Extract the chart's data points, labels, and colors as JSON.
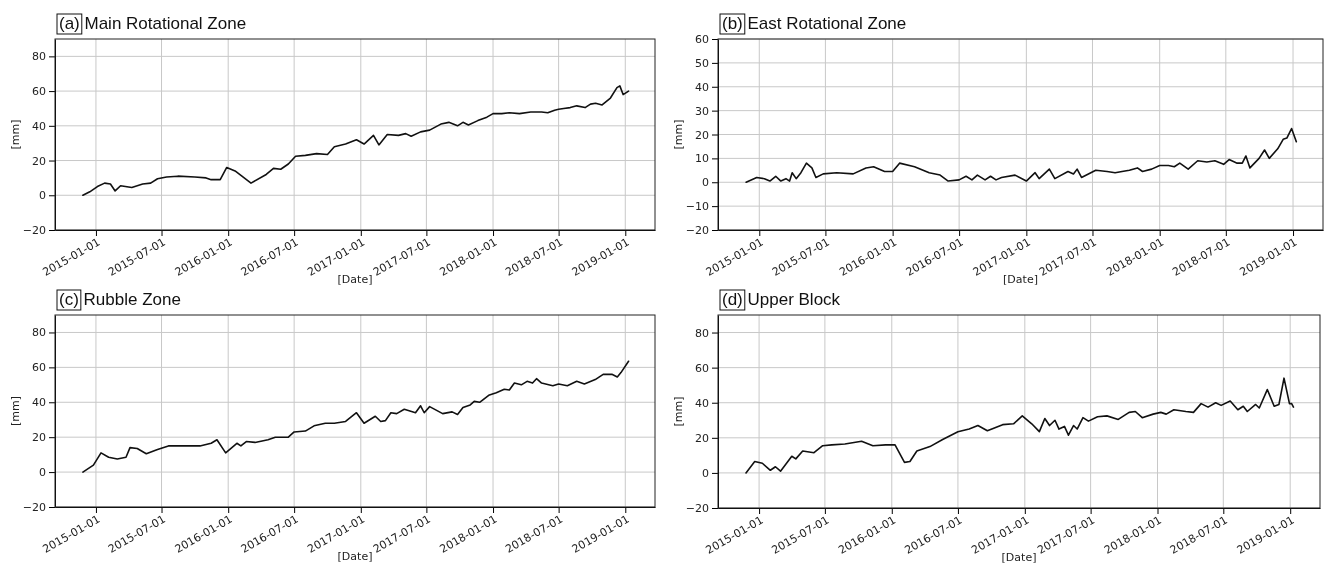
{
  "chart_data": [
    {
      "type": "line",
      "title": "(a) Main Rotational Zone",
      "xlabel": "[Date]",
      "ylabel": "[mm]",
      "xlim": [
        "2014-09-10",
        "2019-03-24"
      ],
      "xticks": [
        "2015-01-01",
        "2015-07-01",
        "2016-01-01",
        "2016-07-01",
        "2017-01-01",
        "2017-07-01",
        "2018-01-01",
        "2018-07-01",
        "2019-01-01"
      ],
      "ylim": [
        -20,
        90
      ],
      "yticks": [
        -20,
        0,
        20,
        40,
        60,
        80
      ],
      "grid": true,
      "series": [
        {
          "color": "#111111",
          "x": [
            "2014-11-26",
            "2014-12-15",
            "2015-01-05",
            "2015-01-25",
            "2015-02-10",
            "2015-02-23",
            "2015-03-10",
            "2015-04-10",
            "2015-05-10",
            "2015-06-01",
            "2015-06-20",
            "2015-07-15",
            "2015-08-15",
            "2015-10-01",
            "2015-11-01",
            "2015-11-15",
            "2015-12-10",
            "2015-12-28",
            "2016-01-20",
            "2016-03-04",
            "2016-04-15",
            "2016-05-05",
            "2016-05-25",
            "2016-06-15",
            "2016-07-05",
            "2016-08-01",
            "2016-09-01",
            "2016-10-01",
            "2016-10-20",
            "2016-11-20",
            "2016-12-20",
            "2017-01-10",
            "2017-02-05",
            "2017-02-20",
            "2017-03-15",
            "2017-04-15",
            "2017-05-05",
            "2017-05-20",
            "2017-06-15",
            "2017-07-10",
            "2017-08-10",
            "2017-09-01",
            "2017-09-25",
            "2017-10-10",
            "2017-10-25",
            "2017-11-20",
            "2017-12-15",
            "2018-01-01",
            "2018-01-25",
            "2018-02-15",
            "2018-03-15",
            "2018-04-15",
            "2018-05-15",
            "2018-06-01",
            "2018-06-20",
            "2018-07-01",
            "2018-07-15",
            "2018-08-02",
            "2018-08-20",
            "2018-09-12",
            "2018-09-27",
            "2018-10-11",
            "2018-10-29",
            "2018-11-21",
            "2018-12-09",
            "2018-12-17",
            "2018-12-26",
            "2019-01-10"
          ],
          "values": [
            0,
            2,
            5,
            7,
            6.5,
            2.5,
            5.5,
            4.5,
            6.5,
            7,
            9.5,
            10.5,
            11,
            10.5,
            10,
            9,
            9,
            16,
            14,
            7,
            12,
            15.5,
            15,
            18,
            22.5,
            23,
            24,
            23.5,
            28,
            29.5,
            32,
            29.5,
            34.5,
            29,
            35,
            34.5,
            35.5,
            34,
            36.5,
            37.5,
            41,
            42,
            40,
            42,
            40.5,
            43,
            45,
            47,
            47,
            47.5,
            47,
            48,
            48,
            47.5,
            49,
            49.5,
            50,
            50.5,
            51.5,
            50.5,
            52.5,
            53,
            52,
            56,
            62,
            63,
            58,
            60
          ]
        }
      ]
    },
    {
      "type": "line",
      "title": "(b) East Rotational Zone",
      "xlabel": "[Date]",
      "ylabel": "[mm]",
      "xlim": [
        "2014-09-10",
        "2019-03-24"
      ],
      "xticks": [
        "2015-01-01",
        "2015-07-01",
        "2016-01-01",
        "2016-07-01",
        "2017-01-01",
        "2017-07-01",
        "2018-01-01",
        "2018-07-01",
        "2019-01-01"
      ],
      "ylim": [
        -20,
        60
      ],
      "yticks": [
        -20,
        -10,
        0,
        10,
        20,
        30,
        40,
        50,
        60
      ],
      "grid": true,
      "series": [
        {
          "color": "#111111",
          "x": [
            "2014-11-26",
            "2014-12-25",
            "2015-01-15",
            "2015-01-30",
            "2015-02-15",
            "2015-03-01",
            "2015-03-15",
            "2015-03-25",
            "2015-04-01",
            "2015-04-12",
            "2015-04-25",
            "2015-05-10",
            "2015-05-25",
            "2015-06-05",
            "2015-06-25",
            "2015-08-01",
            "2015-09-15",
            "2015-10-20",
            "2015-11-10",
            "2015-12-10",
            "2016-01-01",
            "2016-01-20",
            "2016-03-01",
            "2016-04-10",
            "2016-05-10",
            "2016-06-01",
            "2016-07-01",
            "2016-07-20",
            "2016-08-05",
            "2016-08-20",
            "2016-09-10",
            "2016-09-25",
            "2016-10-10",
            "2016-10-25",
            "2016-12-01",
            "2017-01-01",
            "2017-01-25",
            "2017-02-05",
            "2017-03-05",
            "2017-03-20",
            "2017-04-25",
            "2017-05-10",
            "2017-05-20",
            "2017-06-01",
            "2017-07-10",
            "2017-08-10",
            "2017-09-01",
            "2017-09-20",
            "2017-10-10",
            "2017-11-01",
            "2017-11-15",
            "2017-12-10",
            "2018-01-01",
            "2018-01-25",
            "2018-02-10",
            "2018-02-25",
            "2018-03-20",
            "2018-04-15",
            "2018-05-10",
            "2018-06-01",
            "2018-06-25",
            "2018-07-10",
            "2018-08-01",
            "2018-08-15",
            "2018-08-25",
            "2018-09-05",
            "2018-09-30",
            "2018-10-15",
            "2018-10-28",
            "2018-11-20",
            "2018-12-05",
            "2018-12-15",
            "2018-12-28",
            "2019-01-10"
          ],
          "values": [
            0,
            2,
            1.5,
            0.5,
            2.5,
            0.5,
            1.5,
            0.5,
            4,
            1.5,
            4,
            8,
            6,
            2,
            3.5,
            4,
            3.5,
            6,
            6.5,
            4.5,
            4.5,
            8,
            6.5,
            4,
            3,
            0.5,
            1,
            2.5,
            1,
            3,
            1,
            2.5,
            1,
            2,
            3,
            0.5,
            4,
            1.5,
            5.5,
            1.5,
            4.5,
            3.5,
            5.5,
            2,
            5,
            4.5,
            4,
            4.5,
            5,
            6,
            4.5,
            5.5,
            7,
            7,
            6.5,
            8,
            5.5,
            9,
            8.5,
            9,
            7.5,
            9.5,
            8,
            8,
            11,
            6,
            10,
            13.5,
            10,
            14,
            18,
            18.5,
            22.5,
            17
          ]
        }
      ]
    },
    {
      "type": "line",
      "title": "(c) Rubble Zone",
      "xlabel": "[Date]",
      "ylabel": "[mm]",
      "xlim": [
        "2014-09-10",
        "2019-03-24"
      ],
      "xticks": [
        "2015-01-01",
        "2015-07-01",
        "2016-01-01",
        "2016-07-01",
        "2017-01-01",
        "2017-07-01",
        "2018-01-01",
        "2018-07-01",
        "2019-01-01"
      ],
      "ylim": [
        -20,
        90
      ],
      "yticks": [
        -20,
        0,
        20,
        40,
        60,
        80
      ],
      "grid": true,
      "series": [
        {
          "color": "#111111",
          "x": [
            "2014-11-26",
            "2014-12-25",
            "2015-01-15",
            "2015-02-05",
            "2015-03-01",
            "2015-03-25",
            "2015-04-05",
            "2015-04-25",
            "2015-05-20",
            "2015-06-20",
            "2015-07-20",
            "2015-09-01",
            "2015-10-15",
            "2015-11-15",
            "2015-12-01",
            "2015-12-25",
            "2016-01-25",
            "2016-02-05",
            "2016-02-20",
            "2016-03-15",
            "2016-04-20",
            "2016-05-10",
            "2016-06-15",
            "2016-07-01",
            "2016-08-01",
            "2016-08-25",
            "2016-09-25",
            "2016-10-20",
            "2016-11-20",
            "2016-12-20",
            "2017-01-10",
            "2017-02-10",
            "2017-02-25",
            "2017-03-10",
            "2017-03-25",
            "2017-04-10",
            "2017-05-01",
            "2017-06-01",
            "2017-06-15",
            "2017-06-25",
            "2017-07-10",
            "2017-08-15",
            "2017-09-10",
            "2017-09-25",
            "2017-10-10",
            "2017-10-30",
            "2017-11-10",
            "2017-11-25",
            "2017-12-20",
            "2018-01-10",
            "2018-02-01",
            "2018-02-15",
            "2018-03-01",
            "2018-03-20",
            "2018-04-05",
            "2018-04-20",
            "2018-05-01",
            "2018-05-15",
            "2018-06-15",
            "2018-07-01",
            "2018-07-25",
            "2018-08-20",
            "2018-09-10",
            "2018-10-10",
            "2018-11-01",
            "2018-11-25",
            "2018-12-10",
            "2018-12-20",
            "2019-01-10"
          ],
          "values": [
            0,
            4,
            11,
            8.5,
            7.5,
            8.5,
            14,
            13.5,
            10.5,
            13,
            15,
            15,
            15,
            16.5,
            18.5,
            11,
            16.5,
            15,
            17.5,
            17,
            18.5,
            20,
            20,
            23,
            23.5,
            26.5,
            28,
            28,
            29,
            34,
            28,
            32,
            29,
            29.5,
            34,
            33.5,
            36,
            34,
            38,
            34,
            37.5,
            33.5,
            34.5,
            33,
            37,
            38.5,
            40.5,
            40,
            44,
            45.5,
            47.5,
            47,
            51,
            50,
            52,
            51,
            53.5,
            51,
            49.5,
            50.5,
            49.5,
            52,
            50.5,
            53,
            56,
            56,
            54.5,
            57,
            63.5
          ]
        }
      ]
    },
    {
      "type": "line",
      "title": "(d) Upper Block",
      "xlabel": "[Date]",
      "ylabel": "[mm]",
      "xlim": [
        "2014-09-10",
        "2019-03-24"
      ],
      "xticks": [
        "2015-01-01",
        "2015-07-01",
        "2016-01-01",
        "2016-07-01",
        "2017-01-01",
        "2017-07-01",
        "2018-01-01",
        "2018-07-01",
        "2019-01-01"
      ],
      "ylim": [
        -20,
        90
      ],
      "yticks": [
        -20,
        0,
        20,
        40,
        60,
        80
      ],
      "grid": true,
      "series": [
        {
          "color": "#111111",
          "x": [
            "2014-11-26",
            "2014-12-20",
            "2015-01-10",
            "2015-02-01",
            "2015-02-15",
            "2015-03-01",
            "2015-04-01",
            "2015-04-12",
            "2015-05-01",
            "2015-06-01",
            "2015-06-25",
            "2015-07-20",
            "2015-08-25",
            "2015-10-10",
            "2015-11-10",
            "2015-12-15",
            "2016-01-10",
            "2016-02-05",
            "2016-02-20",
            "2016-03-10",
            "2016-04-15",
            "2016-05-20",
            "2016-07-01",
            "2016-08-01",
            "2016-08-25",
            "2016-09-20",
            "2016-11-01",
            "2016-12-01",
            "2016-12-25",
            "2017-01-20",
            "2017-02-10",
            "2017-02-25",
            "2017-03-10",
            "2017-03-25",
            "2017-04-05",
            "2017-04-20",
            "2017-05-01",
            "2017-05-15",
            "2017-05-25",
            "2017-06-10",
            "2017-06-25",
            "2017-07-20",
            "2017-08-15",
            "2017-09-15",
            "2017-10-15",
            "2017-11-01",
            "2017-11-20",
            "2017-12-20",
            "2018-01-10",
            "2018-01-25",
            "2018-02-15",
            "2018-03-20",
            "2018-04-10",
            "2018-05-01",
            "2018-05-20",
            "2018-06-10",
            "2018-06-25",
            "2018-07-20",
            "2018-08-10",
            "2018-08-25",
            "2018-09-05",
            "2018-09-28",
            "2018-10-08",
            "2018-10-30",
            "2018-11-18",
            "2018-12-01",
            "2018-12-15",
            "2018-12-30",
            "2019-01-05",
            "2019-01-10"
          ],
          "values": [
            0,
            6.5,
            5.5,
            1.5,
            3.5,
            1,
            9.5,
            8,
            12.5,
            11.5,
            15.5,
            16,
            16.5,
            18,
            15.5,
            16,
            16,
            6,
            6.5,
            12.5,
            15,
            19,
            23.5,
            25,
            27,
            24,
            27.5,
            28,
            32.5,
            28,
            23.5,
            31,
            27,
            30,
            25,
            26.5,
            21.5,
            27,
            25,
            31.5,
            29.5,
            32,
            32.5,
            30.5,
            34.5,
            35,
            31.5,
            33.5,
            34.5,
            33.5,
            36,
            35,
            34.5,
            39.5,
            37.5,
            40,
            38.5,
            41,
            36,
            38,
            35,
            39,
            37,
            47.5,
            38,
            39,
            54,
            39.5,
            39.5,
            37.5
          ]
        }
      ]
    }
  ]
}
